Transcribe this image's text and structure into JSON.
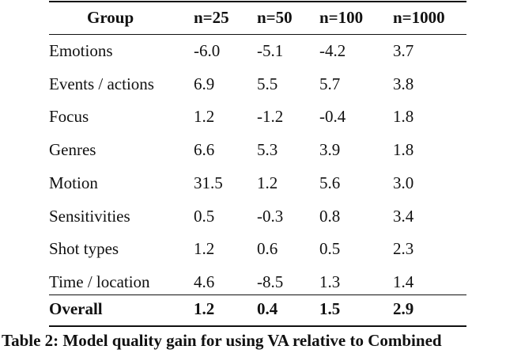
{
  "table": {
    "header": [
      "Group",
      "n=25",
      "n=50",
      "n=100",
      "n=1000"
    ],
    "rows": [
      [
        "Emotions",
        "-6.0",
        "-5.1",
        "-4.2",
        "3.7"
      ],
      [
        "Events / actions",
        "6.9",
        "5.5",
        "5.7",
        "3.8"
      ],
      [
        "Focus",
        "1.2",
        "-1.2",
        "-0.4",
        "1.8"
      ],
      [
        "Genres",
        "6.6",
        "5.3",
        "3.9",
        "1.8"
      ],
      [
        "Motion",
        "31.5",
        "1.2",
        "5.6",
        "3.0"
      ],
      [
        "Sensitivities",
        "0.5",
        "-0.3",
        "0.8",
        "3.4"
      ],
      [
        "Shot types",
        "1.2",
        "0.6",
        "0.5",
        "2.3"
      ],
      [
        "Time / location",
        "4.6",
        "-8.5",
        "1.3",
        "1.4"
      ]
    ],
    "overall": [
      "Overall",
      "1.2",
      "0.4",
      "1.5",
      "2.9"
    ]
  },
  "caption": "Table 2: Model quality gain for using VA relative to Combined"
}
